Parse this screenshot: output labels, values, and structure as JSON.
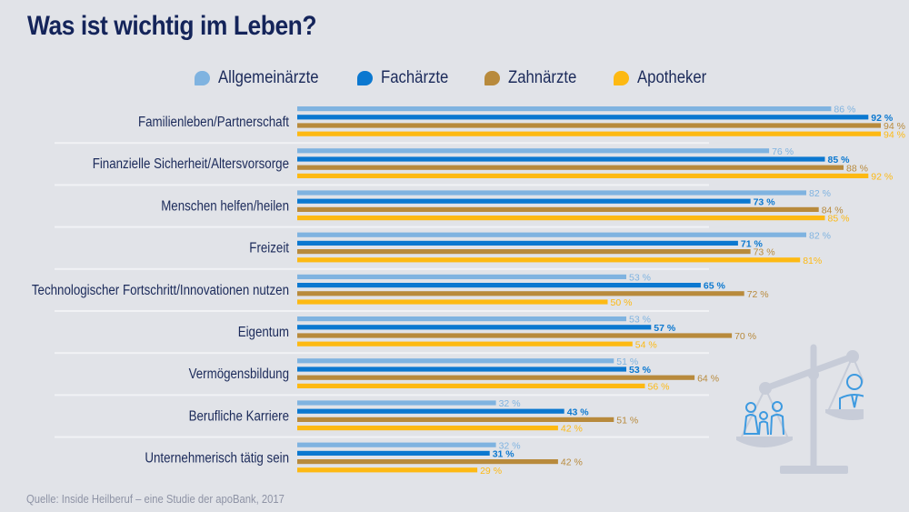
{
  "title": "Was ist wichtig im Leben?",
  "source": "Quelle: Inside Heilberuf – eine Studie der apoBank, 2017",
  "illustration": {
    "name": "balance-scale-icon",
    "left_pan": "family-icon",
    "right_pan": "doctor-icon"
  },
  "chart_data": {
    "type": "bar",
    "orientation": "horizontal",
    "title": "Was ist wichtig im Leben?",
    "xlabel": "",
    "ylabel": "",
    "unit": "%",
    "xlim": [
      0,
      100
    ],
    "grid": false,
    "legend_position": "top",
    "categories": [
      "Familienleben/Partnerschaft",
      "Finanzielle Sicherheit/Altersvorsorge",
      "Menschen helfen/heilen",
      "Freizeit",
      "Technologischer Fortschritt/Innovationen nutzen",
      "Eigentum",
      "Vermögensbildung",
      "Berufliche Karriere",
      "Unternehmerisch tätig sein"
    ],
    "series": [
      {
        "name": "Allgemeinärzte",
        "color": "#7fb3e0",
        "label_bold": false,
        "values": [
          86,
          76,
          82,
          82,
          53,
          53,
          51,
          32,
          32
        ],
        "labels": [
          "86 %",
          "76 %",
          "82 %",
          "82 %",
          "53 %",
          "53 %",
          "51 %",
          "32 %",
          "32 %"
        ]
      },
      {
        "name": "Fachärzte",
        "color": "#0b78d0",
        "label_bold": true,
        "values": [
          92,
          85,
          73,
          71,
          65,
          57,
          53,
          43,
          31
        ],
        "labels": [
          "92 %",
          "85 %",
          "73 %",
          "71 %",
          "65 %",
          "57 %",
          "53 %",
          "43 %",
          "31 %"
        ]
      },
      {
        "name": "Zahnärzte",
        "color": "#b88a3c",
        "label_bold": false,
        "values": [
          94,
          88,
          84,
          73,
          72,
          70,
          64,
          51,
          42
        ],
        "labels": [
          "94 %",
          "88 %",
          "84 %",
          "73 %",
          "72 %",
          "70 %",
          "64 %",
          "51 %",
          "42 %"
        ]
      },
      {
        "name": "Apotheker",
        "color": "#fdb913",
        "label_bold": false,
        "values": [
          94,
          92,
          85,
          81,
          50,
          54,
          56,
          42,
          29
        ],
        "labels": [
          "94 %",
          "92 %",
          "85 %",
          "81%",
          "50 %",
          "54 %",
          "56 %",
          "42 %",
          "29 %"
        ]
      }
    ]
  }
}
